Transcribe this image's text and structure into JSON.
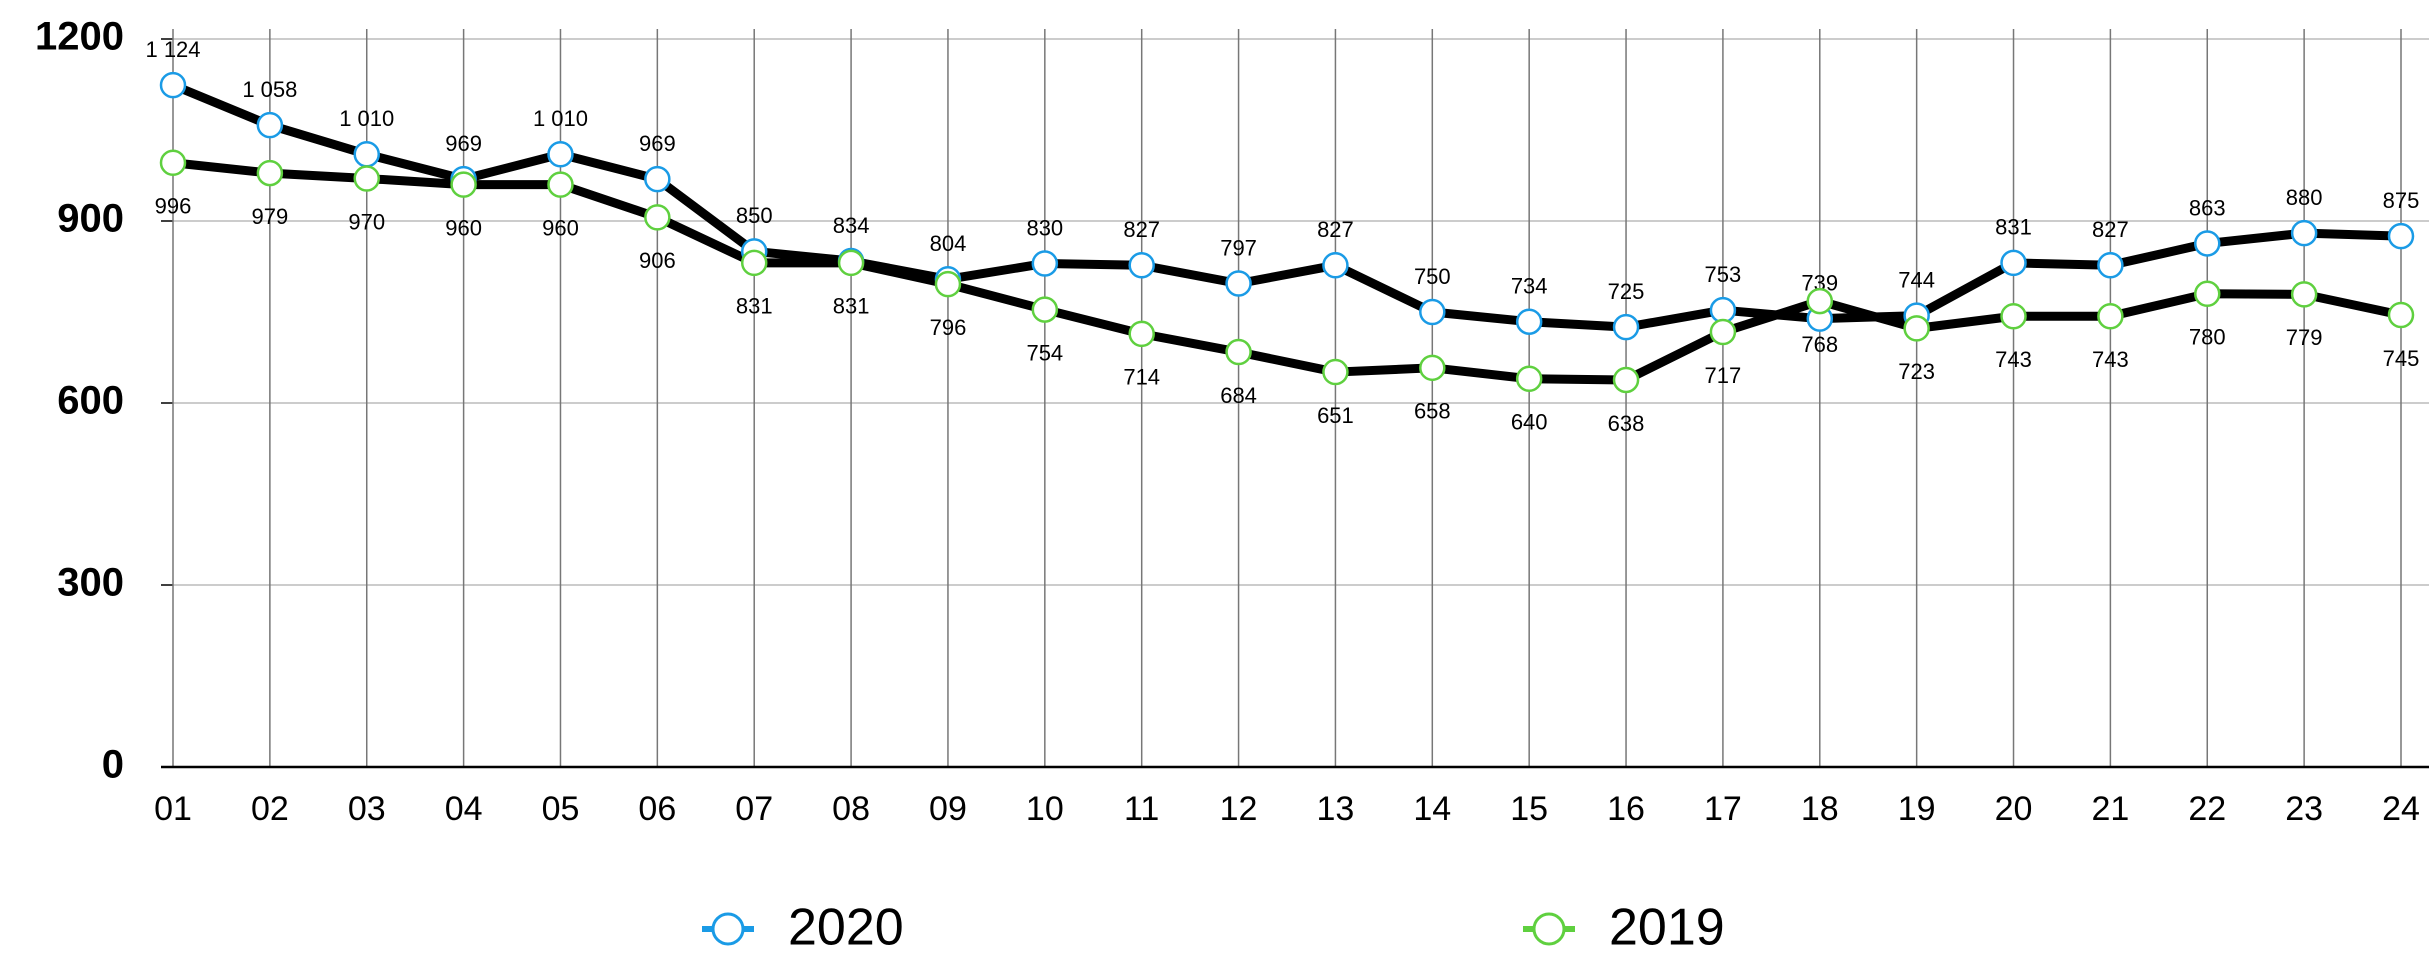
{
  "chart_data": {
    "type": "line",
    "categories": [
      "01",
      "02",
      "03",
      "04",
      "05",
      "06",
      "07",
      "08",
      "09",
      "10",
      "11",
      "12",
      "13",
      "14",
      "15",
      "16",
      "17",
      "18",
      "19",
      "20",
      "21",
      "22",
      "23",
      "24"
    ],
    "series": [
      {
        "name": "2020",
        "color": "#1a9be6",
        "values": [
          1124,
          1058,
          1010,
          969,
          1010,
          969,
          850,
          834,
          804,
          830,
          827,
          797,
          827,
          750,
          734,
          725,
          753,
          739,
          744,
          831,
          827,
          863,
          880,
          875
        ],
        "value_labels": [
          "1 124",
          "1 058",
          "1 010",
          "969",
          "1 010",
          "969",
          "850",
          "834",
          "804",
          "830",
          "827",
          "797",
          "827",
          "750",
          "734",
          "725",
          "753",
          "739",
          "744",
          "831",
          "827",
          "863",
          "880",
          "875"
        ]
      },
      {
        "name": "2019",
        "color": "#5fd03f",
        "values": [
          996,
          979,
          970,
          960,
          960,
          906,
          831,
          831,
          796,
          754,
          714,
          684,
          651,
          658,
          640,
          638,
          717,
          768,
          723,
          743,
          743,
          780,
          779,
          745
        ]
      }
    ],
    "line_color": "#000000",
    "ylim": [
      0,
      1200
    ],
    "yticks": [
      0,
      300,
      600,
      900,
      1200
    ],
    "grid": true
  }
}
